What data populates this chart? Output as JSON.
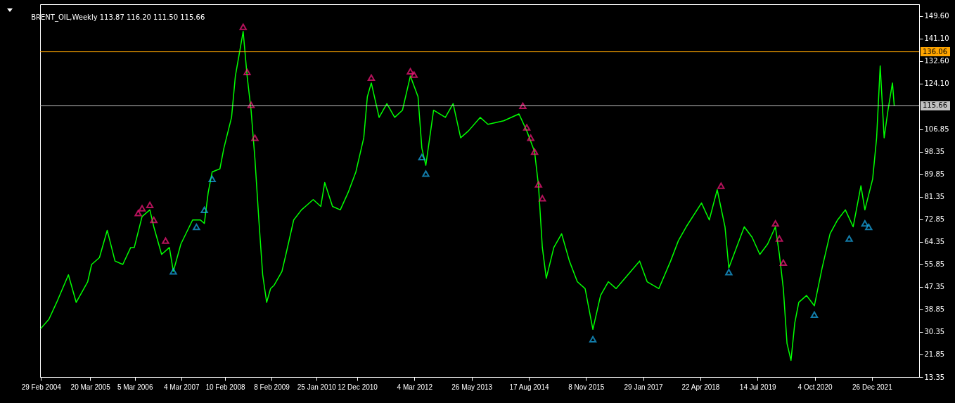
{
  "chart_data": {
    "type": "line",
    "title": "BRENT_OIL,Weekly  113.87 116.20 111.50 115.66",
    "grid": false,
    "xlim": [
      "2004-02-22",
      "2022-12-31"
    ],
    "ylim": [
      13.35,
      154
    ],
    "xticks": [
      {
        "value": "2004-02-29",
        "label": "29 Feb 2004"
      },
      {
        "value": "2005-03-20",
        "label": "20 Mar 2005"
      },
      {
        "value": "2006-03-05",
        "label": "5 Mar 2006"
      },
      {
        "value": "2007-03-04",
        "label": "4 Mar 2007"
      },
      {
        "value": "2008-02-10",
        "label": "10 Feb 2008"
      },
      {
        "value": "2009-02-08",
        "label": "8 Feb 2009"
      },
      {
        "value": "2010-01-25",
        "label": "25 Jan 2010"
      },
      {
        "value": "2010-12-12",
        "label": "12 Dec 2010"
      },
      {
        "value": "2012-03-04",
        "label": "4 Mar 2012"
      },
      {
        "value": "2013-05-26",
        "label": "26 May 2013"
      },
      {
        "value": "2014-08-17",
        "label": "17 Aug 2014"
      },
      {
        "value": "2015-11-08",
        "label": "8 Nov 2015"
      },
      {
        "value": "2017-01-29",
        "label": "29 Jan 2017"
      },
      {
        "value": "2018-04-22",
        "label": "22 Apr 2018"
      },
      {
        "value": "2019-07-14",
        "label": "14 Jul 2019"
      },
      {
        "value": "2020-10-04",
        "label": "4 Oct 2020"
      },
      {
        "value": "2021-12-26",
        "label": "26 Dec 2021"
      }
    ],
    "yticks": [
      13.35,
      21.85,
      30.35,
      38.85,
      47.35,
      55.85,
      64.35,
      72.85,
      81.35,
      89.85,
      98.35,
      106.85,
      {
        "value": 124.1,
        "label": "124.10"
      },
      {
        "value": 132.6,
        "label": "132.60"
      },
      {
        "value": 141.1,
        "label": "141.10"
      },
      {
        "value": 149.6,
        "label": "149.60"
      }
    ],
    "ref_lines": [
      {
        "axis": "y",
        "value": 136.06,
        "label": "136.06",
        "color": "#ffa500"
      },
      {
        "axis": "y",
        "value": 115.66,
        "label": "115.66",
        "color": "#c0c0c0"
      }
    ],
    "series": [
      {
        "color": "#00ff00",
        "x": [
          "2004-02-29",
          "2004-05",
          "2004-07",
          "2004-10",
          "2004-12",
          "2005-03",
          "2005-04",
          "2005-06",
          "2005-08",
          "2005-10",
          "2005-12",
          "2006-02",
          "2006-03",
          "2006-05",
          "2006-07",
          "2006-08",
          "2006-10",
          "2006-12",
          "2007-01",
          "2007-03",
          "2007-06",
          "2007-08",
          "2007-09",
          "2007-10",
          "2007-11",
          "2008-01",
          "2008-02",
          "2008-04",
          "2008-05",
          "2008-07",
          "2008-08",
          "2008-09",
          "2008-10",
          "2008-11",
          "2008-12",
          "2009-01",
          "2009-02",
          "2009-03",
          "2009-05",
          "2009-06",
          "2009-08",
          "2009-10",
          "2009-11",
          "2010-01",
          "2010-03",
          "2010-04",
          "2010-06",
          "2010-08",
          "2010-10",
          "2010-12",
          "2011-02",
          "2011-03",
          "2011-04",
          "2011-06",
          "2011-08",
          "2011-10",
          "2011-12",
          "2012-02",
          "2012-04",
          "2012-05",
          "2012-06",
          "2012-08",
          "2012-11",
          "2013-01",
          "2013-03",
          "2013-05",
          "2013-08",
          "2013-10",
          "2014-02",
          "2014-06",
          "2014-08",
          "2014-10",
          "2014-11",
          "2014-12",
          "2015-01",
          "2015-03",
          "2015-05",
          "2015-07",
          "2015-09",
          "2015-11",
          "2016-01",
          "2016-03",
          "2016-05",
          "2016-07",
          "2016-10",
          "2017-01",
          "2017-03",
          "2017-06",
          "2017-09",
          "2017-11",
          "2018-01",
          "2018-05",
          "2018-07",
          "2018-09",
          "2018-11",
          "2018-12",
          "2019-04",
          "2019-06",
          "2019-08",
          "2019-10",
          "2019-12",
          "2020-01",
          "2020-02",
          "2020-03",
          "2020-04",
          "2020-05",
          "2020-06",
          "2020-08",
          "2020-10",
          "2020-12",
          "2021-02",
          "2021-04",
          "2021-06",
          "2021-08",
          "2021-10",
          "2021-11",
          "2022-01",
          "2022-02",
          "2022-03",
          "2022-04",
          "2022-05",
          "2022-06-05",
          "2022-06-19"
        ],
        "values": [
          31.7,
          35.1,
          41.5,
          51.9,
          41.5,
          49.3,
          55.8,
          58.4,
          68.7,
          57.1,
          55.8,
          62.2,
          62.2,
          73.9,
          76.4,
          70.0,
          59.6,
          62.2,
          53.2,
          63.5,
          72.6,
          72.6,
          71.3,
          82.9,
          90.7,
          91.9,
          99.7,
          111.3,
          126.9,
          143.7,
          126.9,
          114.0,
          95.8,
          72.6,
          51.9,
          41.5,
          46.7,
          48.0,
          53.2,
          59.6,
          72.6,
          76.4,
          77.7,
          80.3,
          77.7,
          86.7,
          77.7,
          76.4,
          82.9,
          90.7,
          103.6,
          119.1,
          124.3,
          111.3,
          116.5,
          111.3,
          114.0,
          126.9,
          119.1,
          99.7,
          93.2,
          114.0,
          111.3,
          116.5,
          103.6,
          106.2,
          111.3,
          108.7,
          110.0,
          112.6,
          106.2,
          98.4,
          85.5,
          62.2,
          50.6,
          62.2,
          67.4,
          57.1,
          49.3,
          46.7,
          31.3,
          44.1,
          49.3,
          46.7,
          51.9,
          57.1,
          49.3,
          46.7,
          57.1,
          64.8,
          70.0,
          79.0,
          72.6,
          84.0,
          70.0,
          54.5,
          70.0,
          66.1,
          59.6,
          63.5,
          70.0,
          59.6,
          46.7,
          26.0,
          19.6,
          33.8,
          41.5,
          44.1,
          40.2,
          54.5,
          67.4,
          72.6,
          76.4,
          70.0,
          85.5,
          76.4,
          88.1,
          103.6,
          130.7,
          103.6,
          114.0,
          124.3,
          115.7
        ]
      },
      {
        "type": "scatter",
        "color": "#ff1a80",
        "marker": "triangle",
        "x": [
          "2006-04",
          "2006-05",
          "2006-07",
          "2006-08",
          "2006-11",
          "2008-07",
          "2008-08",
          "2008-09",
          "2008-10",
          "2011-04",
          "2012-02",
          "2012-03",
          "2014-07",
          "2014-08",
          "2014-09",
          "2014-10",
          "2014-11",
          "2014-12",
          "2018-10",
          "2019-12",
          "2020-01",
          "2020-02"
        ],
        "values": [
          75.2,
          77.0,
          78.3,
          72.6,
          64.8,
          145.5,
          128.4,
          116.0,
          103.6,
          126.3,
          128.7,
          127.4,
          115.7,
          107.5,
          103.6,
          98.4,
          86.0,
          80.8,
          85.5,
          71.3,
          65.6,
          56.5
        ]
      },
      {
        "type": "scatter",
        "color": "#1ab0f0",
        "marker": "triangle",
        "x": [
          "2007-01",
          "2007-07",
          "2007-09",
          "2007-11",
          "2012-05",
          "2012-06",
          "2016-01",
          "2018-12",
          "2020-10",
          "2021-07",
          "2021-11",
          "2021-12"
        ],
        "values": [
          53.2,
          70.0,
          76.4,
          88.1,
          96.3,
          90.1,
          27.6,
          52.9,
          36.9,
          65.6,
          71.3,
          70.0
        ]
      }
    ]
  }
}
